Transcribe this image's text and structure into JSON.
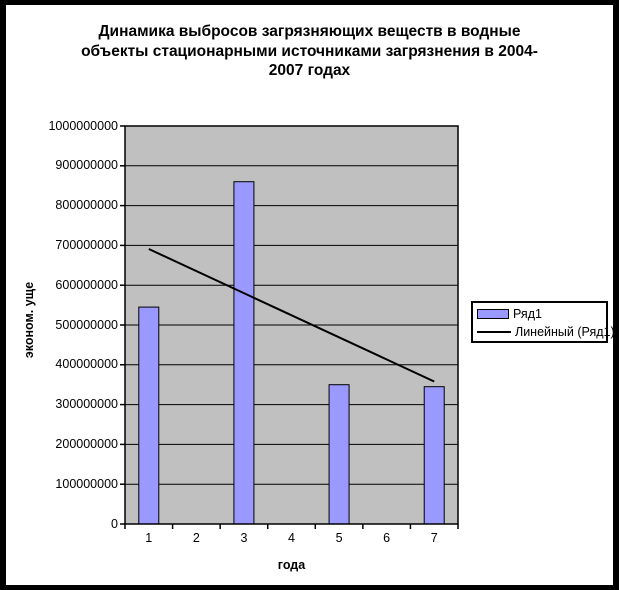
{
  "chart_data": {
    "type": "bar",
    "title": "Динамика выбросов загрязняющих веществ в водные объекты стационарными источниками загрязнения в 2004-2007 годах",
    "title_lines": [
      "Динамика выбросов загрязняющих веществ в водные",
      "объекты стационарными источниками загрязнения в 2004-",
      "2007 годах"
    ],
    "xlabel": "года",
    "ylabel": "эконом. уще",
    "categories": [
      "1",
      "2",
      "3",
      "4",
      "5",
      "6",
      "7"
    ],
    "series": [
      {
        "name": "Ряд1",
        "values": [
          545000000,
          null,
          860000000,
          null,
          350000000,
          null,
          345000000
        ]
      }
    ],
    "trendline": {
      "name": "Линейный (Ряд1)",
      "start_x": 1,
      "start_value": 691000000,
      "end_x": 7,
      "end_value": 358000000
    },
    "ylim": [
      0,
      1000000000
    ],
    "y_tick_step": 100000000,
    "y_ticks": [
      0,
      100000000,
      200000000,
      300000000,
      400000000,
      500000000,
      600000000,
      700000000,
      800000000,
      900000000,
      1000000000
    ],
    "grid": "horizontal",
    "legend_position": "right",
    "legend": [
      "Ряд1",
      "Линейный (Ряд1)"
    ],
    "colors": {
      "bar_fill": "#9999FF",
      "bar_border": "#000000",
      "plot_background": "#C0C0C0",
      "gridline": "#000000",
      "trendline": "#000000",
      "legend_background": "#FFFFFF",
      "page_border": "#000000"
    }
  }
}
